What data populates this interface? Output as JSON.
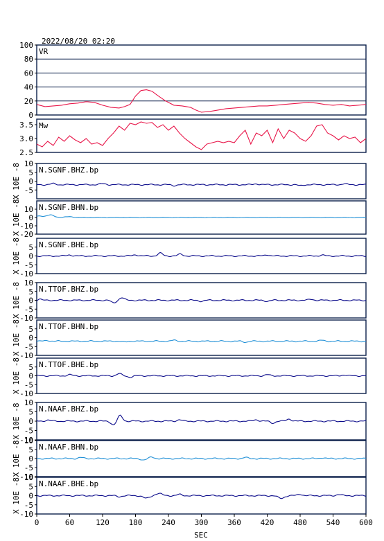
{
  "chart_data": {
    "title": "2022/08/20 02:20",
    "xlabel": "SEC",
    "xlim": [
      0,
      600
    ],
    "xticks": [
      "0",
      "60",
      "120",
      "180",
      "240",
      "300",
      "360",
      "420",
      "480",
      "540",
      "600"
    ],
    "colors": {
      "red": "#e8174a",
      "navy": "#0a0a8a",
      "teal": "#1f8fd6",
      "frame": "#0a1f4a"
    },
    "panels": [
      {
        "type": "line",
        "label": "VR",
        "ylim": [
          0,
          100
        ],
        "yticks": [
          "100",
          "80",
          "60",
          "40",
          "20",
          "0"
        ],
        "grid": true,
        "color": "red",
        "x": [
          0,
          15,
          30,
          45,
          60,
          75,
          90,
          105,
          120,
          135,
          150,
          160,
          170,
          180,
          190,
          200,
          210,
          220,
          235,
          250,
          265,
          280,
          290,
          300,
          315,
          330,
          345,
          360,
          375,
          390,
          405,
          420,
          435,
          450,
          465,
          480,
          495,
          510,
          525,
          540,
          555,
          570,
          585,
          600
        ],
        "y": [
          15,
          12,
          13,
          14,
          16,
          17,
          19,
          18,
          14,
          11,
          10,
          12,
          15,
          27,
          35,
          36,
          34,
          28,
          20,
          14,
          13,
          11,
          7,
          4,
          5,
          7,
          9,
          10,
          11,
          12,
          13,
          13,
          14,
          15,
          16,
          17,
          18,
          17,
          15,
          14,
          15,
          13,
          14,
          15
        ]
      },
      {
        "type": "line",
        "label": "Mw",
        "ylim": [
          2.5,
          3.7
        ],
        "yticks": [
          "3.5",
          "3.0",
          "2.5"
        ],
        "grid": false,
        "color": "red",
        "x": [
          0,
          10,
          20,
          30,
          40,
          50,
          60,
          70,
          80,
          90,
          100,
          110,
          120,
          130,
          140,
          150,
          160,
          170,
          180,
          190,
          200,
          210,
          220,
          230,
          240,
          250,
          260,
          270,
          280,
          290,
          300,
          310,
          320,
          330,
          340,
          350,
          360,
          370,
          380,
          390,
          400,
          410,
          420,
          430,
          440,
          450,
          460,
          470,
          480,
          490,
          500,
          510,
          520,
          530,
          540,
          550,
          560,
          570,
          580,
          590,
          600
        ],
        "y": [
          2.8,
          2.7,
          2.9,
          2.75,
          3.05,
          2.9,
          3.1,
          2.95,
          2.85,
          3.0,
          2.8,
          2.85,
          2.75,
          3.0,
          3.2,
          3.45,
          3.3,
          3.55,
          3.5,
          3.6,
          3.55,
          3.58,
          3.4,
          3.5,
          3.3,
          3.45,
          3.2,
          3.0,
          2.85,
          2.7,
          2.6,
          2.8,
          2.85,
          2.9,
          2.85,
          2.9,
          2.85,
          3.1,
          3.3,
          2.8,
          3.2,
          3.1,
          3.3,
          2.85,
          3.35,
          3.0,
          3.3,
          3.2,
          3.0,
          2.9,
          3.1,
          3.45,
          3.5,
          3.2,
          3.1,
          2.95,
          3.1,
          3.0,
          3.05,
          2.85,
          3.0
        ]
      },
      {
        "type": "line",
        "label": "N.SGNF.BHZ.bp",
        "unit": "X 10E -8",
        "ylim": [
          -10,
          10
        ],
        "yticks": [
          "10",
          "5",
          "0",
          "-5"
        ],
        "color": "navy",
        "level": -2.0,
        "bumps": [
          [
            30,
            0.6,
            6
          ],
          [
            120,
            0.5,
            8
          ],
          [
            250,
            -0.5,
            6
          ],
          [
            400,
            0.5,
            6
          ],
          [
            480,
            -0.6,
            6
          ],
          [
            560,
            0.5,
            6
          ]
        ]
      },
      {
        "type": "line",
        "label": "N.SGNF.BHN.bp",
        "unit": "X 10E -8",
        "ylim": [
          -20,
          20
        ],
        "yticks": [
          "10",
          "0",
          "-10",
          "-20"
        ],
        "color": "teal",
        "level": 0,
        "bumps": [
          [
            5,
            2.0,
            8
          ],
          [
            25,
            3.0,
            10
          ],
          [
            60,
            1.0,
            10
          ]
        ]
      },
      {
        "type": "line",
        "label": "N.SGNF.BHE.bp",
        "unit": "X 10E -8",
        "ylim": [
          -10,
          10
        ],
        "yticks": [
          "5",
          "0",
          "-5",
          "-10"
        ],
        "color": "navy",
        "level": 0,
        "bumps": [
          [
            60,
            0.6,
            6
          ],
          [
            180,
            0.7,
            6
          ],
          [
            225,
            1.6,
            6
          ],
          [
            262,
            1.0,
            6
          ],
          [
            420,
            0.7,
            6
          ],
          [
            520,
            0.5,
            6
          ]
        ]
      },
      {
        "type": "line",
        "label": "N.TTOF.BHZ.bp",
        "unit": "X 10E -8",
        "ylim": [
          -10,
          10
        ],
        "yticks": [
          "10",
          "5",
          "0",
          "-5",
          "-10"
        ],
        "color": "navy",
        "level": 0,
        "bumps": [
          [
            5,
            0.8,
            4
          ],
          [
            140,
            -1.5,
            6
          ],
          [
            155,
            1.5,
            6
          ],
          [
            300,
            -0.5,
            6
          ],
          [
            420,
            -0.5,
            6
          ],
          [
            500,
            0.6,
            6
          ]
        ]
      },
      {
        "type": "line",
        "label": "N.TTOF.BHN.bp",
        "unit": "X 10E -8",
        "ylim": [
          -10,
          10
        ],
        "yticks": [
          "5",
          "0",
          "-5",
          "-10"
        ],
        "color": "teal",
        "level": -2.0,
        "bumps": [
          [
            20,
            0.5,
            6
          ],
          [
            160,
            -0.5,
            6
          ],
          [
            250,
            0.5,
            6
          ],
          [
            380,
            -0.5,
            6
          ],
          [
            520,
            0.5,
            6
          ]
        ]
      },
      {
        "type": "line",
        "label": "N.TTOF.BHE.bp",
        "unit": "X 10E -8",
        "ylim": [
          -10,
          10
        ],
        "yticks": [
          "5",
          "0",
          "-5",
          "-10"
        ],
        "color": "navy",
        "level": 0,
        "bumps": [
          [
            60,
            0.6,
            6
          ],
          [
            150,
            1.2,
            6
          ],
          [
            170,
            -0.8,
            6
          ],
          [
            420,
            0.6,
            6
          ],
          [
            560,
            0.5,
            6
          ]
        ]
      },
      {
        "type": "line",
        "label": "N.NAAF.BHZ.bp",
        "unit": "X 10E -8",
        "ylim": [
          -10,
          10
        ],
        "yticks": [
          "10",
          "5",
          "0",
          "-5",
          "-10"
        ],
        "color": "navy",
        "level": 0,
        "bumps": [
          [
            20,
            0.6,
            6
          ],
          [
            140,
            -2.0,
            6
          ],
          [
            152,
            3.0,
            6
          ],
          [
            260,
            0.8,
            6
          ],
          [
            400,
            0.8,
            6
          ],
          [
            430,
            -1.0,
            6
          ],
          [
            460,
            1.2,
            6
          ]
        ]
      },
      {
        "type": "line",
        "label": "N.NAAF.BHN.bp",
        "unit": "X 10E -8",
        "ylim": [
          -10,
          10
        ],
        "yticks": [
          "10",
          "5",
          "0",
          "-5",
          "-10"
        ],
        "color": "teal",
        "level": 0,
        "bumps": [
          [
            80,
            0.6,
            6
          ],
          [
            195,
            -0.8,
            6
          ],
          [
            210,
            0.8,
            6
          ],
          [
            380,
            0.6,
            6
          ],
          [
            520,
            0.5,
            6
          ]
        ]
      },
      {
        "type": "line",
        "label": "N.NAAF.BHE.bp",
        "unit": "X 10E -8",
        "ylim": [
          -10,
          10
        ],
        "yticks": [
          "10",
          "5",
          "0",
          "-5",
          "-10"
        ],
        "color": "navy",
        "level": 0,
        "bumps": [
          [
            150,
            -0.6,
            6
          ],
          [
            200,
            -1.5,
            8
          ],
          [
            222,
            1.2,
            8
          ],
          [
            260,
            0.6,
            6
          ],
          [
            445,
            -1.5,
            8
          ],
          [
            480,
            0.8,
            6
          ],
          [
            550,
            0.6,
            6
          ]
        ]
      }
    ]
  }
}
